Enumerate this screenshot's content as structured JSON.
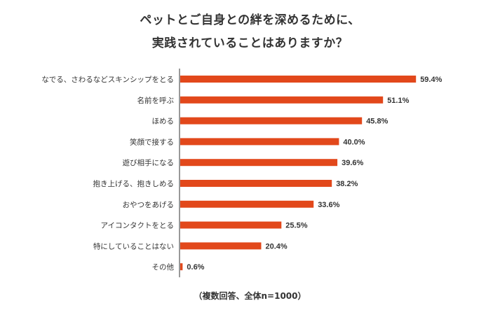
{
  "title_line1": "ペットとご自身との絆を深めるために、",
  "title_line2": "実践されていることはありますか？",
  "footer_note": "（複数回答、全体n=1000）",
  "colors": {
    "bar": "#e2481b",
    "axis": "#333333",
    "text": "#333333"
  },
  "chart_data": {
    "type": "bar",
    "orientation": "horizontal",
    "categories": [
      "なでる、さわるなどスキンシップをとる",
      "名前を呼ぶ",
      "ほめる",
      "笑顔で接する",
      "遊び相手になる",
      "抱き上げる、抱きしめる",
      "おやつをあげる",
      "アイコンタクトをとる",
      "特にしていることはない",
      "その他"
    ],
    "values": [
      59.4,
      51.1,
      45.8,
      40.0,
      39.6,
      38.2,
      33.6,
      25.5,
      20.4,
      0.6
    ],
    "value_labels": [
      "59.4%",
      "51.1%",
      "45.8%",
      "40.0%",
      "39.6%",
      "38.2%",
      "33.6%",
      "25.5%",
      "20.4%",
      "0.6%"
    ],
    "xlim": [
      0,
      100
    ],
    "grid": false,
    "legend": "none"
  }
}
